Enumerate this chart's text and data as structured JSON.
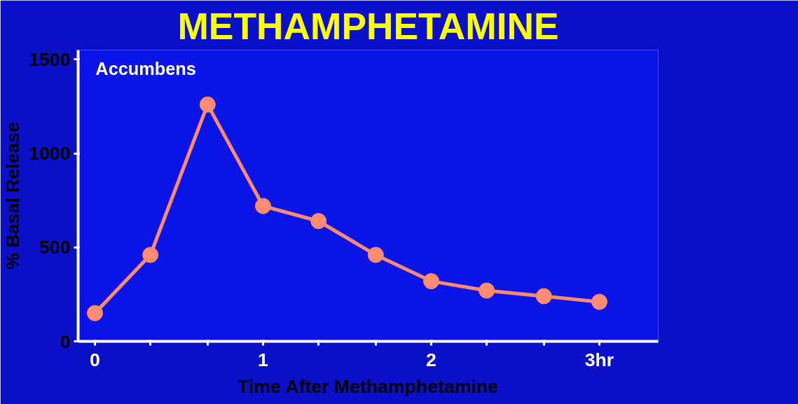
{
  "chart_data": {
    "type": "line",
    "title": "METHAMPHETAMINE",
    "xlabel": "Time After Methamphetamine",
    "ylabel": "% Basal Release",
    "annotations": [
      "Accumbens"
    ],
    "x": [
      0,
      0.33,
      0.67,
      1,
      1.33,
      1.67,
      2,
      2.33,
      2.67,
      3
    ],
    "series": [
      {
        "color": "#ff8c70",
        "values": [
          150,
          460,
          1260,
          720,
          640,
          460,
          320,
          270,
          240,
          210
        ]
      }
    ],
    "xlim": [
      -0.1,
      3.35
    ],
    "ylim": [
      0,
      1550
    ],
    "xticks": [
      0,
      {
        "value": 0.33,
        "label": null
      },
      {
        "value": 0.67,
        "label": null
      },
      1,
      {
        "value": 1.33,
        "label": null
      },
      {
        "value": 1.67,
        "label": null
      },
      2,
      {
        "value": 2.33,
        "label": null
      },
      {
        "value": 2.67,
        "label": null
      },
      {
        "value": 3,
        "label": "3hr"
      }
    ],
    "yticks": [
      0,
      500,
      1000,
      1500
    ],
    "marker": "circle",
    "line_style": "solid"
  }
}
